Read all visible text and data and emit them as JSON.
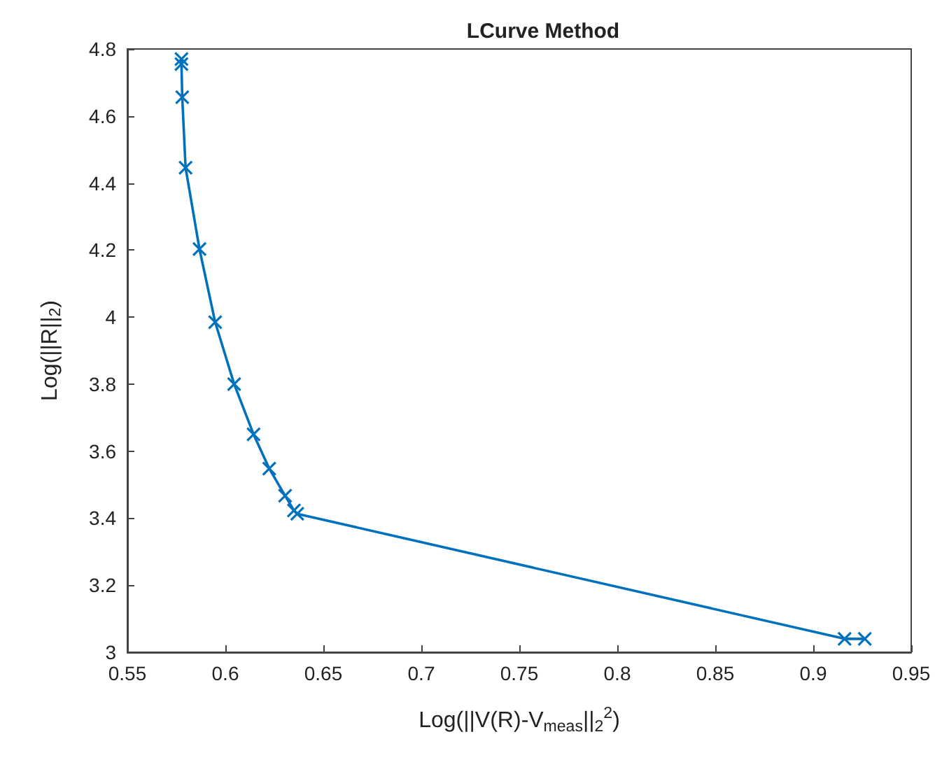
{
  "chart_data": {
    "type": "line",
    "title": "LCurve Method",
    "xlabel": "Log(||V(R)-V$_{meas}$||$_{2}$$^{2}$)",
    "ylabel": "Log(||R||$_{2}$)",
    "x": [
      0.5776,
      0.5776,
      0.578,
      0.5797,
      0.5868,
      0.5948,
      0.6045,
      0.6144,
      0.6224,
      0.6305,
      0.635,
      0.6367,
      0.916,
      0.9263
    ],
    "series": [
      {
        "color": "#0072bd",
        "values": [
          4.77,
          4.755,
          4.656,
          4.446,
          4.203,
          3.985,
          3.8,
          3.65,
          3.548,
          3.467,
          3.423,
          3.413,
          3.04,
          3.04
        ]
      }
    ],
    "xlim": [
      0.55,
      0.95
    ],
    "xticks": [
      0.55,
      0.6,
      0.65,
      0.7,
      0.75,
      0.8,
      0.85,
      0.9,
      0.95
    ],
    "ylim": [
      3,
      4.8
    ],
    "yticks": [
      3,
      3.2,
      3.4,
      3.6,
      3.8,
      4,
      4.2,
      4.4,
      4.6,
      4.8
    ],
    "grid": false,
    "marker": "cross",
    "line_style": "solid"
  }
}
